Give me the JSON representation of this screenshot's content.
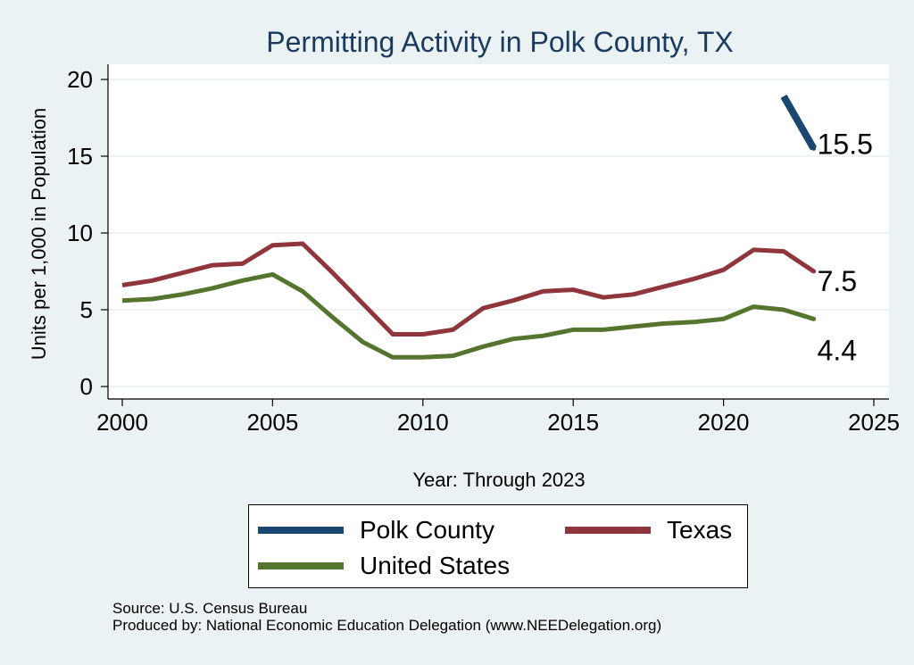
{
  "chart_data": {
    "type": "line",
    "title": "Permitting Activity in Polk County, TX",
    "xlabel": "Year: Through 2023",
    "ylabel": "Units per 1,000 in Population",
    "xlim": [
      2000,
      2025
    ],
    "ylim": [
      0,
      20
    ],
    "xticks": [
      2000,
      2005,
      2010,
      2015,
      2020,
      2025
    ],
    "yticks": [
      0,
      5,
      10,
      15,
      20
    ],
    "grid": true,
    "series": [
      {
        "name": "Polk County",
        "color": "#1a476f",
        "x": [
          2022,
          2023
        ],
        "values": [
          18.9,
          15.5
        ],
        "end_label": "15.5"
      },
      {
        "name": "Texas",
        "color": "#90353b",
        "x": [
          2000,
          2001,
          2002,
          2003,
          2004,
          2005,
          2006,
          2007,
          2008,
          2009,
          2010,
          2011,
          2012,
          2013,
          2014,
          2015,
          2016,
          2017,
          2018,
          2019,
          2020,
          2021,
          2022,
          2023
        ],
        "values": [
          6.6,
          6.9,
          7.4,
          7.9,
          8.0,
          9.2,
          9.3,
          7.4,
          5.4,
          3.4,
          3.4,
          3.7,
          5.1,
          5.6,
          6.2,
          6.3,
          5.8,
          6.0,
          6.5,
          7.0,
          7.6,
          8.9,
          8.8,
          7.5
        ],
        "end_label": "7.5"
      },
      {
        "name": "United States",
        "color": "#55752f",
        "x": [
          2000,
          2001,
          2002,
          2003,
          2004,
          2005,
          2006,
          2007,
          2008,
          2009,
          2010,
          2011,
          2012,
          2013,
          2014,
          2015,
          2016,
          2017,
          2018,
          2019,
          2020,
          2021,
          2022,
          2023
        ],
        "values": [
          5.6,
          5.7,
          6.0,
          6.4,
          6.9,
          7.3,
          6.2,
          4.5,
          2.9,
          1.9,
          1.9,
          2.0,
          2.6,
          3.1,
          3.3,
          3.7,
          3.7,
          3.9,
          4.1,
          4.2,
          4.4,
          5.2,
          5.0,
          4.4
        ],
        "end_label": "4.4"
      }
    ]
  },
  "legend": {
    "items": [
      {
        "label": "Polk County",
        "color": "#1a476f"
      },
      {
        "label": "Texas",
        "color": "#90353b"
      },
      {
        "label": "United States",
        "color": "#55752f"
      }
    ]
  },
  "footer": {
    "source": "Source: U.S. Census Bureau",
    "produced_by": "Produced by: National Economic Education Delegation (www.NEEDelegation.org)"
  }
}
